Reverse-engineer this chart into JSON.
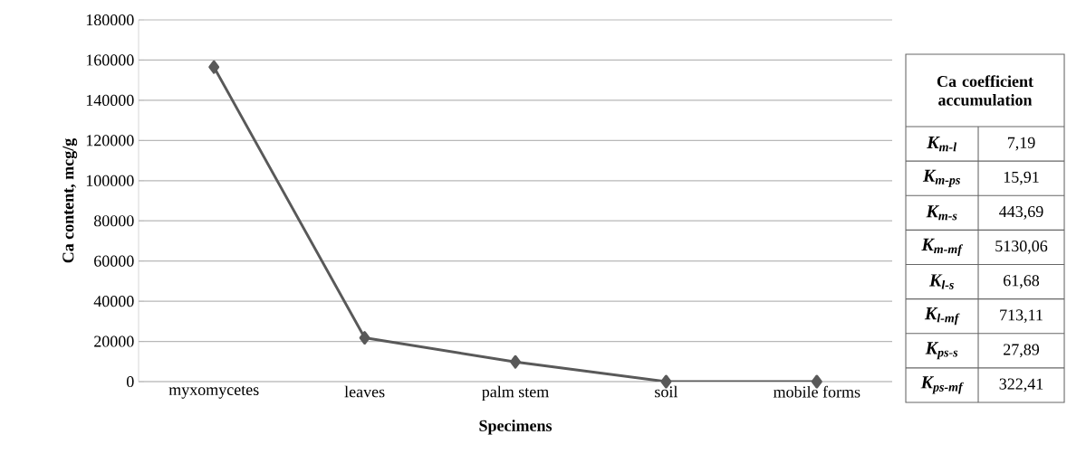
{
  "chart_data": [
    {
      "type": "line",
      "xlabel": "Specimens",
      "ylabel": "Ca content, mcg/g",
      "categories": [
        "myxomycetes",
        "leaves",
        "palm stem",
        "soil",
        "mobile forms"
      ],
      "values": [
        156500,
        21800,
        9800,
        0,
        0
      ],
      "color": "#595959",
      "marker": "diamond",
      "line_style": "solid",
      "ylim": [
        0,
        180000
      ],
      "yticks": [
        0,
        20000,
        40000,
        60000,
        80000,
        100000,
        120000,
        140000,
        160000,
        180000
      ],
      "grid": "y"
    },
    {
      "type": "other",
      "title": "Ca coefficient accumulation",
      "annotations": [
        "K$_{m-l}$",
        "7,19",
        "K$_{m-ps}$",
        "15,91",
        "K$_{m-s}$",
        "443,69",
        "K$_{m-mf}$",
        "5130,06",
        "K$_{l-s}$",
        "61,68",
        "K$_{l-mf}$",
        "713,11",
        "K$_{ps-s}$",
        "27,89",
        "K$_{ps-mf}$",
        "322,41"
      ]
    }
  ]
}
